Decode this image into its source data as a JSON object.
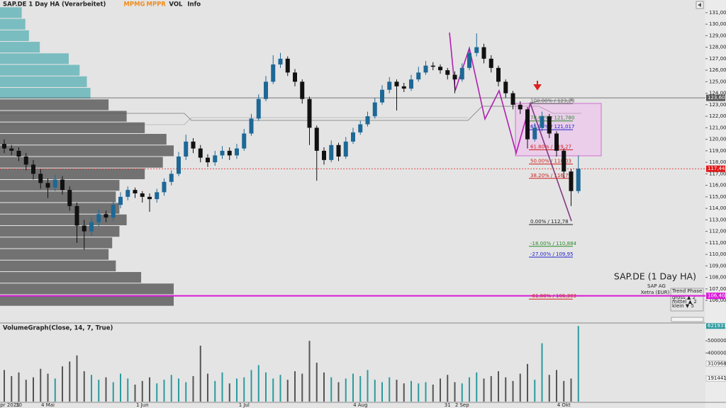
{
  "header": {
    "title": "SAP.DE 1 Day HA (Verarbeitet)",
    "indicators": [
      {
        "label": "MPMG",
        "color": "#f08c1e"
      },
      {
        "label": "MPPR",
        "color": "#f08c1e"
      },
      {
        "label": "VOL",
        "color": "#222"
      },
      {
        "label": "Info",
        "color": "#222"
      }
    ]
  },
  "chart_data": [
    {
      "type": "candlestick",
      "categories": [
        "21 Apr 2021",
        null,
        "30",
        null,
        null,
        null,
        "4 Mai",
        null,
        null,
        null,
        null,
        null,
        null,
        null,
        null,
        null,
        null,
        null,
        null,
        "1 Jun",
        null,
        null,
        null,
        null,
        null,
        null,
        null,
        null,
        null,
        null,
        null,
        null,
        null,
        "1 Jul",
        null,
        null,
        null,
        null,
        null,
        null,
        null,
        null,
        null,
        null,
        null,
        null,
        null,
        null,
        null,
        "4 Aug",
        null,
        null,
        null,
        null,
        null,
        null,
        null,
        null,
        null,
        null,
        null,
        "31",
        null,
        "2 Sep",
        null,
        null,
        null,
        null,
        null,
        null,
        null,
        null,
        null,
        null,
        null,
        null,
        null,
        "4 Okt",
        null,
        null
      ],
      "open": [
        119.6,
        119.2,
        119.0,
        118.5,
        117.8,
        117.0,
        116.2,
        115.8,
        116.5,
        115.6,
        114.2,
        112.5,
        112.0,
        112.8,
        113.5,
        113.2,
        114.3,
        115.0,
        115.6,
        115.3,
        115.0,
        114.8,
        115.4,
        116.3,
        117.0,
        118.5,
        119.8,
        119.2,
        118.4,
        118.0,
        118.6,
        119.0,
        118.6,
        119.2,
        120.5,
        121.8,
        123.5,
        125.0,
        126.5,
        127.0,
        125.8,
        125.0,
        123.5,
        121.0,
        119.0,
        118.2,
        119.5,
        118.5,
        119.8,
        120.6,
        121.3,
        122.0,
        123.2,
        124.3,
        125.0,
        124.6,
        124.4,
        125.2,
        125.8,
        126.4,
        126.3,
        126.0,
        125.6,
        125.2,
        126.2,
        127.5,
        128.0,
        127.0,
        126.2,
        125.0,
        124.0,
        123.0,
        122.6,
        120.0,
        121.0,
        122.0,
        120.5,
        119.0,
        117.2,
        115.5
      ],
      "close": [
        119.2,
        119.0,
        118.5,
        117.8,
        117.0,
        116.2,
        115.8,
        116.5,
        115.6,
        114.2,
        112.5,
        112.0,
        112.8,
        113.5,
        113.2,
        114.3,
        115.0,
        115.6,
        115.3,
        115.0,
        114.8,
        115.4,
        116.3,
        117.0,
        118.5,
        119.8,
        119.2,
        118.4,
        118.0,
        118.6,
        119.0,
        118.6,
        119.2,
        120.5,
        121.8,
        123.5,
        125.0,
        126.5,
        127.0,
        125.8,
        125.0,
        123.5,
        121.0,
        119.0,
        118.2,
        119.5,
        118.5,
        119.8,
        120.6,
        121.3,
        122.0,
        123.2,
        124.3,
        125.0,
        124.6,
        124.4,
        125.2,
        125.8,
        126.4,
        126.3,
        126.0,
        125.6,
        125.2,
        126.2,
        127.5,
        128.0,
        127.0,
        126.2,
        125.0,
        124.0,
        123.0,
        122.6,
        120.0,
        121.0,
        122.0,
        120.5,
        119.0,
        117.2,
        115.5,
        117.44
      ],
      "high": [
        120.0,
        119.5,
        119.3,
        118.8,
        118.2,
        117.4,
        116.6,
        116.9,
        116.8,
        115.9,
        114.5,
        113.0,
        113.2,
        113.9,
        113.8,
        114.6,
        115.4,
        115.9,
        115.8,
        115.5,
        115.3,
        115.7,
        116.6,
        117.3,
        118.9,
        120.4,
        120.1,
        119.5,
        118.7,
        119.0,
        119.4,
        119.3,
        119.6,
        120.9,
        122.2,
        123.9,
        125.5,
        127.3,
        127.5,
        127.2,
        126.1,
        125.2,
        123.7,
        121.2,
        119.3,
        119.9,
        119.7,
        120.2,
        121.0,
        121.6,
        122.4,
        123.6,
        124.7,
        125.4,
        125.2,
        124.9,
        125.6,
        126.3,
        126.8,
        126.7,
        126.5,
        126.2,
        125.9,
        126.6,
        128.0,
        129.2,
        128.3,
        127.3,
        126.4,
        125.2,
        124.2,
        123.3,
        122.8,
        121.4,
        122.4,
        122.2,
        120.7,
        119.2,
        117.4,
        118.6
      ],
      "low": [
        118.8,
        118.6,
        118.1,
        117.3,
        116.5,
        115.7,
        114.9,
        115.5,
        115.2,
        113.8,
        111.0,
        110.4,
        111.6,
        112.4,
        112.8,
        112.9,
        114.0,
        114.7,
        114.9,
        114.5,
        113.7,
        114.5,
        115.1,
        116.0,
        116.8,
        118.2,
        118.8,
        118.0,
        117.6,
        117.7,
        118.3,
        118.2,
        118.3,
        119.0,
        120.3,
        121.6,
        123.3,
        124.8,
        126.2,
        125.5,
        124.6,
        123.1,
        119.5,
        116.4,
        117.8,
        118.0,
        118.1,
        118.3,
        119.6,
        120.4,
        121.1,
        121.8,
        123.0,
        124.0,
        122.5,
        124.1,
        124.2,
        125.0,
        125.6,
        126.0,
        125.7,
        125.2,
        124.0,
        125.0,
        126.0,
        127.2,
        126.6,
        125.8,
        124.6,
        123.6,
        122.6,
        122.2,
        119.2,
        119.8,
        120.7,
        120.1,
        118.5,
        116.6,
        114.2,
        115.3
      ],
      "up_color": "#1d6896",
      "down_color": "#111111",
      "ylim": [
        104.1,
        132.1
      ],
      "yticks": [
        {
          "value": 106,
          "label": "106,00"
        },
        {
          "value": 107,
          "label": "107,00"
        },
        {
          "value": 108,
          "label": "108,00"
        },
        {
          "value": 109,
          "label": "109,00"
        },
        {
          "value": 110,
          "label": "110,00"
        },
        {
          "value": 111,
          "label": "111,00"
        },
        {
          "value": 112,
          "label": "112,00"
        },
        {
          "value": 113,
          "label": "113,00"
        },
        {
          "value": 114,
          "label": "114,00"
        },
        {
          "value": 115,
          "label": "115,00"
        },
        {
          "value": 116,
          "label": "116,00"
        },
        {
          "value": 117,
          "label": "117,00"
        },
        {
          "value": 118,
          "label": "118,00"
        },
        {
          "value": 119,
          "label": "119,00"
        },
        {
          "value": 120,
          "label": "120,00"
        },
        {
          "value": 121,
          "label": "121,00"
        },
        {
          "value": 122,
          "label": "122,00"
        },
        {
          "value": 123,
          "label": "123,00"
        },
        {
          "value": 124,
          "label": "124,00"
        },
        {
          "value": 125,
          "label": "125,00"
        },
        {
          "value": 126,
          "label": "126,00"
        },
        {
          "value": 127,
          "label": "127,00"
        },
        {
          "value": 128,
          "label": "128,00"
        },
        {
          "value": 129,
          "label": "129,00"
        },
        {
          "value": 130,
          "label": "130,00"
        },
        {
          "value": 131,
          "label": "131,00"
        }
      ],
      "price_markers": [
        {
          "value": 123.6,
          "label": "123,60",
          "color": "#555555"
        },
        {
          "value": 117.44,
          "label": "117,44",
          "color": "#e01818"
        },
        {
          "value": 106.4,
          "label": "106,40",
          "color": "#d81ad8"
        }
      ],
      "volume_profile": {
        "levels": [
          131,
          130,
          129,
          128,
          127,
          126,
          125,
          124,
          123,
          122,
          121,
          120,
          119,
          118,
          117,
          116,
          115,
          114,
          113,
          112,
          111,
          110,
          109,
          108,
          107,
          106
        ],
        "values": [
          30,
          35,
          40,
          55,
          95,
          110,
          120,
          125,
          150,
          175,
          200,
          230,
          240,
          225,
          200,
          165,
          160,
          165,
          175,
          165,
          155,
          150,
          160,
          195,
          240,
          240
        ],
        "upper_color": "#5fb3b8",
        "lower_color": "#555555"
      },
      "fibonacci": [
        {
          "label": "100.00% / 123,28",
          "value": 123.28,
          "color": "#666666"
        },
        {
          "label": "78.60% / 121,780",
          "value": 121.78,
          "color": "#2a8a2a"
        },
        {
          "label": "65.00% / 121,017",
          "value": 121.017,
          "color": "#2222cc"
        },
        {
          "label": "61.80% / 119,27",
          "value": 119.27,
          "color": "#d02020"
        },
        {
          "label": "50.00% / 118,03",
          "value": 118.03,
          "color": "#d02020"
        },
        {
          "label": "38.20% / 116,79",
          "value": 116.79,
          "color": "#d02020"
        },
        {
          "label": "0.00% / 112,78",
          "value": 112.78,
          "color": "#222222"
        },
        {
          "label": "-18.00% / 110,884",
          "value": 110.884,
          "color": "#2a8a2a"
        },
        {
          "label": "-27.00% / 109,95",
          "value": 109.95,
          "color": "#2222cc"
        },
        {
          "label": "-61.80% / 106,303",
          "value": 106.303,
          "color": "#d02020"
        }
      ]
    },
    {
      "type": "bar",
      "title": "VolumeGraph(Close, 14, 7, True)",
      "values": [
        2600000,
        2100000,
        2400000,
        1800000,
        2000000,
        2700000,
        2300000,
        1900000,
        2900000,
        3300000,
        3800000,
        2500000,
        2200000,
        1800000,
        2000000,
        1600000,
        2300000,
        1900000,
        1400000,
        1700000,
        2000000,
        1500000,
        1800000,
        2200000,
        1900000,
        1600000,
        2100000,
        4600000,
        2300000,
        1700000,
        2400000,
        1500000,
        1900000,
        2000000,
        2600000,
        3000000,
        2400000,
        1900000,
        2200000,
        1800000,
        2500000,
        2300000,
        5000000,
        3200000,
        2400000,
        2000000,
        1600000,
        1900000,
        2300000,
        2100000,
        2600000,
        1800000,
        1600000,
        2000000,
        1800000,
        1500000,
        1700000,
        1500000,
        1600000,
        1400000,
        1900000,
        2200000,
        1600000,
        1500000,
        2000000,
        2400000,
        1900000,
        2100000,
        2500000,
        2000000,
        1700000,
        2300000,
        3100000,
        1800000,
        4800000,
        2200000,
        2600000,
        1700000,
        1900000,
        6219376
      ],
      "up_color": "#2a9a9e",
      "down_color": "#555555",
      "ylim": [
        0,
        6350000
      ],
      "yticks": [
        4000000,
        5000000
      ],
      "markers": [
        3109688,
        1914417
      ]
    }
  ],
  "info": {
    "title": "SAP.DE (1 Day HA)",
    "company": "SAP AG",
    "exchange": "Xetra (EUR)",
    "phase_title": "Trend Phase",
    "phase_rows": [
      "gross ▲ 2",
      "mittel ▲ 2",
      "klein ▼ 5"
    ]
  }
}
